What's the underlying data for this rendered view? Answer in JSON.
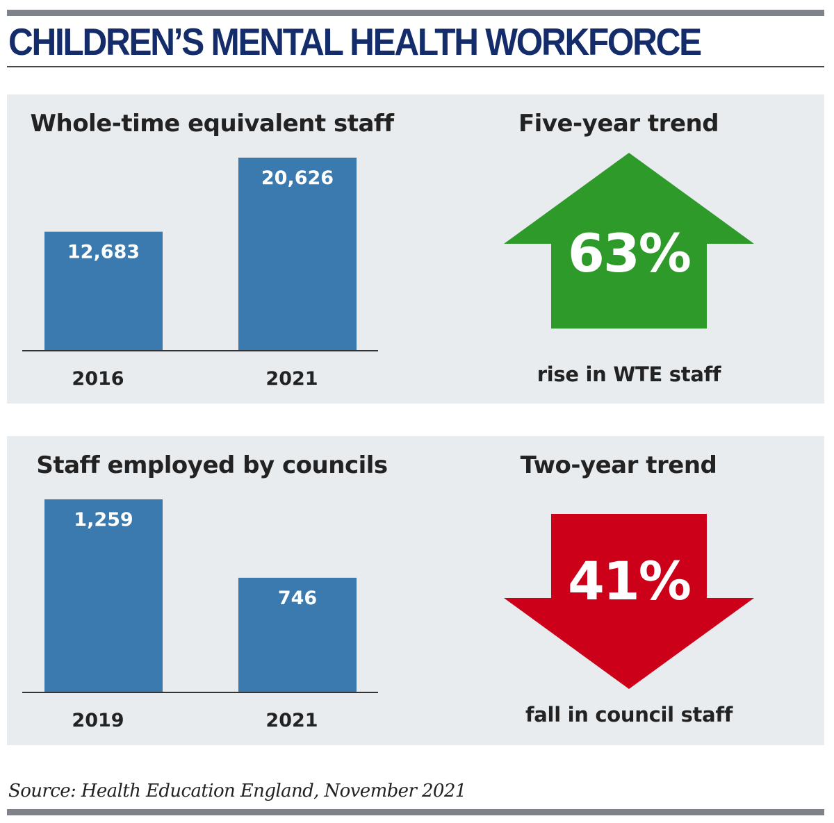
{
  "title": "CHILDREN’S MENTAL HEALTH WORKFORCE",
  "source": "Source: Health Education England, November 2021",
  "colors": {
    "title": "#142d6a",
    "bar": "#3a7aae",
    "rise_arrow": "#2e9a2a",
    "fall_arrow": "#cc0019",
    "panel": "#e9ecef"
  },
  "trends": {
    "top": {
      "title": "Five-year trend",
      "percent": "63%",
      "caption": "rise in WTE staff",
      "direction": "up",
      "icon": "up-arrow-icon"
    },
    "bottom": {
      "title": "Two-year trend",
      "percent": "41%",
      "caption": "fall in council staff",
      "direction": "down",
      "icon": "down-arrow-icon"
    }
  },
  "chart_data": [
    {
      "type": "bar",
      "title": "Whole-time equivalent staff",
      "categories": [
        "2016",
        "2021"
      ],
      "values": [
        12683,
        20626
      ],
      "value_labels": [
        "12,683",
        "20,626"
      ],
      "ylim": [
        0,
        20626
      ]
    },
    {
      "type": "bar",
      "title": "Staff employed by councils",
      "categories": [
        "2019",
        "2021"
      ],
      "values": [
        1259,
        746
      ],
      "value_labels": [
        "1,259",
        "746"
      ],
      "ylim": [
        0,
        1259
      ]
    }
  ]
}
